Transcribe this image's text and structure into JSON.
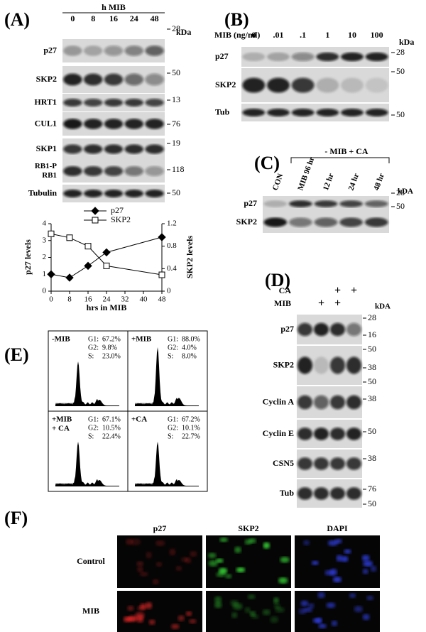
{
  "panels": {
    "A": {
      "label": "(A)",
      "header": "h MIB",
      "lanes": [
        "0",
        "8",
        "16",
        "24",
        "48"
      ],
      "unit": "kDa",
      "rows": [
        {
          "names": [
            "p27"
          ],
          "markers": [
            "28"
          ]
        },
        {
          "names": [
            "SKP2"
          ],
          "markers": [
            "50"
          ]
        },
        {
          "names": [
            "HRT1"
          ],
          "markers": [
            "13"
          ]
        },
        {
          "names": [
            "CUL1"
          ],
          "markers": [
            "76"
          ]
        },
        {
          "names": [
            "SKP1"
          ],
          "markers": [
            "19"
          ]
        },
        {
          "names": [
            "RB1-P",
            "RB1"
          ],
          "markers": [
            "118"
          ]
        },
        {
          "names": [
            "Tubulin"
          ],
          "markers": [
            "50"
          ]
        }
      ]
    },
    "B": {
      "label": "(B)",
      "treatment": "MIB (ng/ml)",
      "lanes": [
        "0",
        ".01",
        ".1",
        "1",
        "10",
        "100"
      ],
      "unit": "kDa",
      "rows": [
        {
          "names": [
            "p27"
          ],
          "markers": [
            "28"
          ]
        },
        {
          "names": [
            "SKP2"
          ],
          "markers": [
            "50"
          ]
        },
        {
          "names": [
            "Tub"
          ],
          "markers": [
            "50"
          ]
        }
      ]
    },
    "C": {
      "label": "(C)",
      "lanes": [
        "CON",
        "MIB 96 hr",
        "12 hr",
        "24 hr",
        "48 hr"
      ],
      "bracket": "- MIB + CA",
      "unit": "kDA",
      "rows": [
        {
          "names": [
            "p27"
          ],
          "markers": [
            "28"
          ]
        },
        {
          "names": [
            "SKP2"
          ],
          "markers": [
            "50"
          ]
        }
      ]
    },
    "D": {
      "label": "(D)",
      "conditions": [
        {
          "name": "CA",
          "signs": [
            "+",
            "+"
          ]
        },
        {
          "name": "MIB",
          "signs": [
            "+",
            "+"
          ]
        }
      ],
      "unit": "kDA",
      "rows": [
        {
          "names": [
            "p27"
          ],
          "markers": [
            "28",
            "16"
          ]
        },
        {
          "names": [
            "SKP2"
          ],
          "markers": [
            "50",
            "38"
          ]
        },
        {
          "names": [
            "Cyclin A"
          ],
          "markers": [
            "50",
            "38"
          ]
        },
        {
          "names": [
            "Cyclin E"
          ],
          "markers": [
            "50"
          ]
        },
        {
          "names": [
            "CSN5"
          ],
          "markers": [
            "38"
          ]
        },
        {
          "names": [
            "Tub"
          ],
          "markers": [
            "76",
            "50"
          ]
        }
      ]
    },
    "E": {
      "label": "(E)",
      "cells": [
        {
          "label": [
            "-MIB"
          ],
          "stats": [
            [
              "G1:",
              "67.2%"
            ],
            [
              "G2:",
              "9.8%"
            ],
            [
              "S:",
              "23.0%"
            ]
          ]
        },
        {
          "label": [
            "+MIB"
          ],
          "stats": [
            [
              "G1:",
              "88.0%"
            ],
            [
              "G2:",
              "4.0%"
            ],
            [
              "S:",
              "8.0%"
            ]
          ]
        },
        {
          "label": [
            "+MIB",
            "+ CA"
          ],
          "stats": [
            [
              "G1:",
              "67.1%"
            ],
            [
              "G2:",
              "10.5%"
            ],
            [
              "S:",
              "22.4%"
            ]
          ]
        },
        {
          "label": [
            "+CA"
          ],
          "stats": [
            [
              "G1:",
              "67.2%"
            ],
            [
              "G2:",
              "10.1%"
            ],
            [
              "S:",
              "22.7%"
            ]
          ]
        }
      ]
    },
    "F": {
      "label": "(F)",
      "columns": [
        "p27",
        "SKP2",
        "DAPI"
      ],
      "rows": [
        "Control",
        "MIB"
      ]
    }
  },
  "chart_data": {
    "type": "line",
    "x_label": "hrs in MIB",
    "y_label": "p27 levels",
    "y2_label": "SKP2 levels",
    "x": [
      0,
      8,
      16,
      24,
      48
    ],
    "xlim": [
      0,
      48
    ],
    "xticks": [
      0,
      8,
      16,
      24,
      32,
      40,
      48
    ],
    "ylim": [
      0,
      4
    ],
    "yticks": [
      0,
      1,
      2,
      3,
      4
    ],
    "y2lim": [
      0,
      1.2
    ],
    "y2ticks": [
      0,
      0.4,
      0.8,
      1.2
    ],
    "legend": "top",
    "series": [
      {
        "name": "p27",
        "color": "#000000",
        "marker": "diamond-filled",
        "values": [
          1.0,
          0.8,
          1.5,
          2.3,
          3.2
        ]
      },
      {
        "name": "SKP2",
        "color": "#000000",
        "marker": "square-open",
        "axis": "y2",
        "values": [
          1.02,
          0.95,
          0.8,
          0.45,
          0.29
        ]
      }
    ]
  }
}
